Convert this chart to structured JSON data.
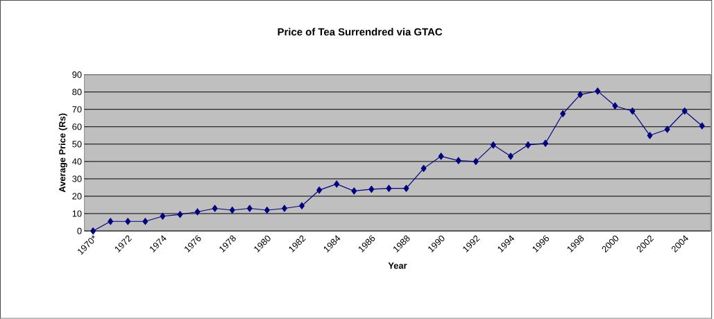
{
  "chart_data": {
    "type": "line",
    "title": "Price of Tea Surrendred via GTAC",
    "xlabel": "Year",
    "ylabel": "Average Price (Rs)",
    "categories": [
      "1970*",
      null,
      "1972",
      null,
      "1974",
      null,
      "1976",
      null,
      "1978",
      null,
      "1980",
      null,
      "1982",
      null,
      "1984",
      null,
      "1986",
      null,
      "1988",
      null,
      "1990",
      null,
      "1992",
      null,
      "1994",
      null,
      "1996",
      null,
      "1998",
      null,
      "2000",
      null,
      "2002",
      null,
      "2004",
      null
    ],
    "values": [
      0,
      5.5,
      5.5,
      5.5,
      8.5,
      9.5,
      11,
      13,
      12,
      13,
      12,
      13,
      14.5,
      23.5,
      27,
      23,
      24,
      24.5,
      24.5,
      36,
      43,
      40.5,
      40,
      49.5,
      43,
      49.5,
      50.5,
      67.5,
      78.5,
      80.5,
      72,
      69,
      55,
      58.5,
      69,
      60.5
    ],
    "color": "#000080",
    "ylim": [
      0,
      90
    ],
    "yticks": [
      0,
      10,
      20,
      30,
      40,
      50,
      60,
      70,
      80,
      90
    ],
    "grid": "y",
    "marker": "diamond",
    "line_style": "solid"
  }
}
